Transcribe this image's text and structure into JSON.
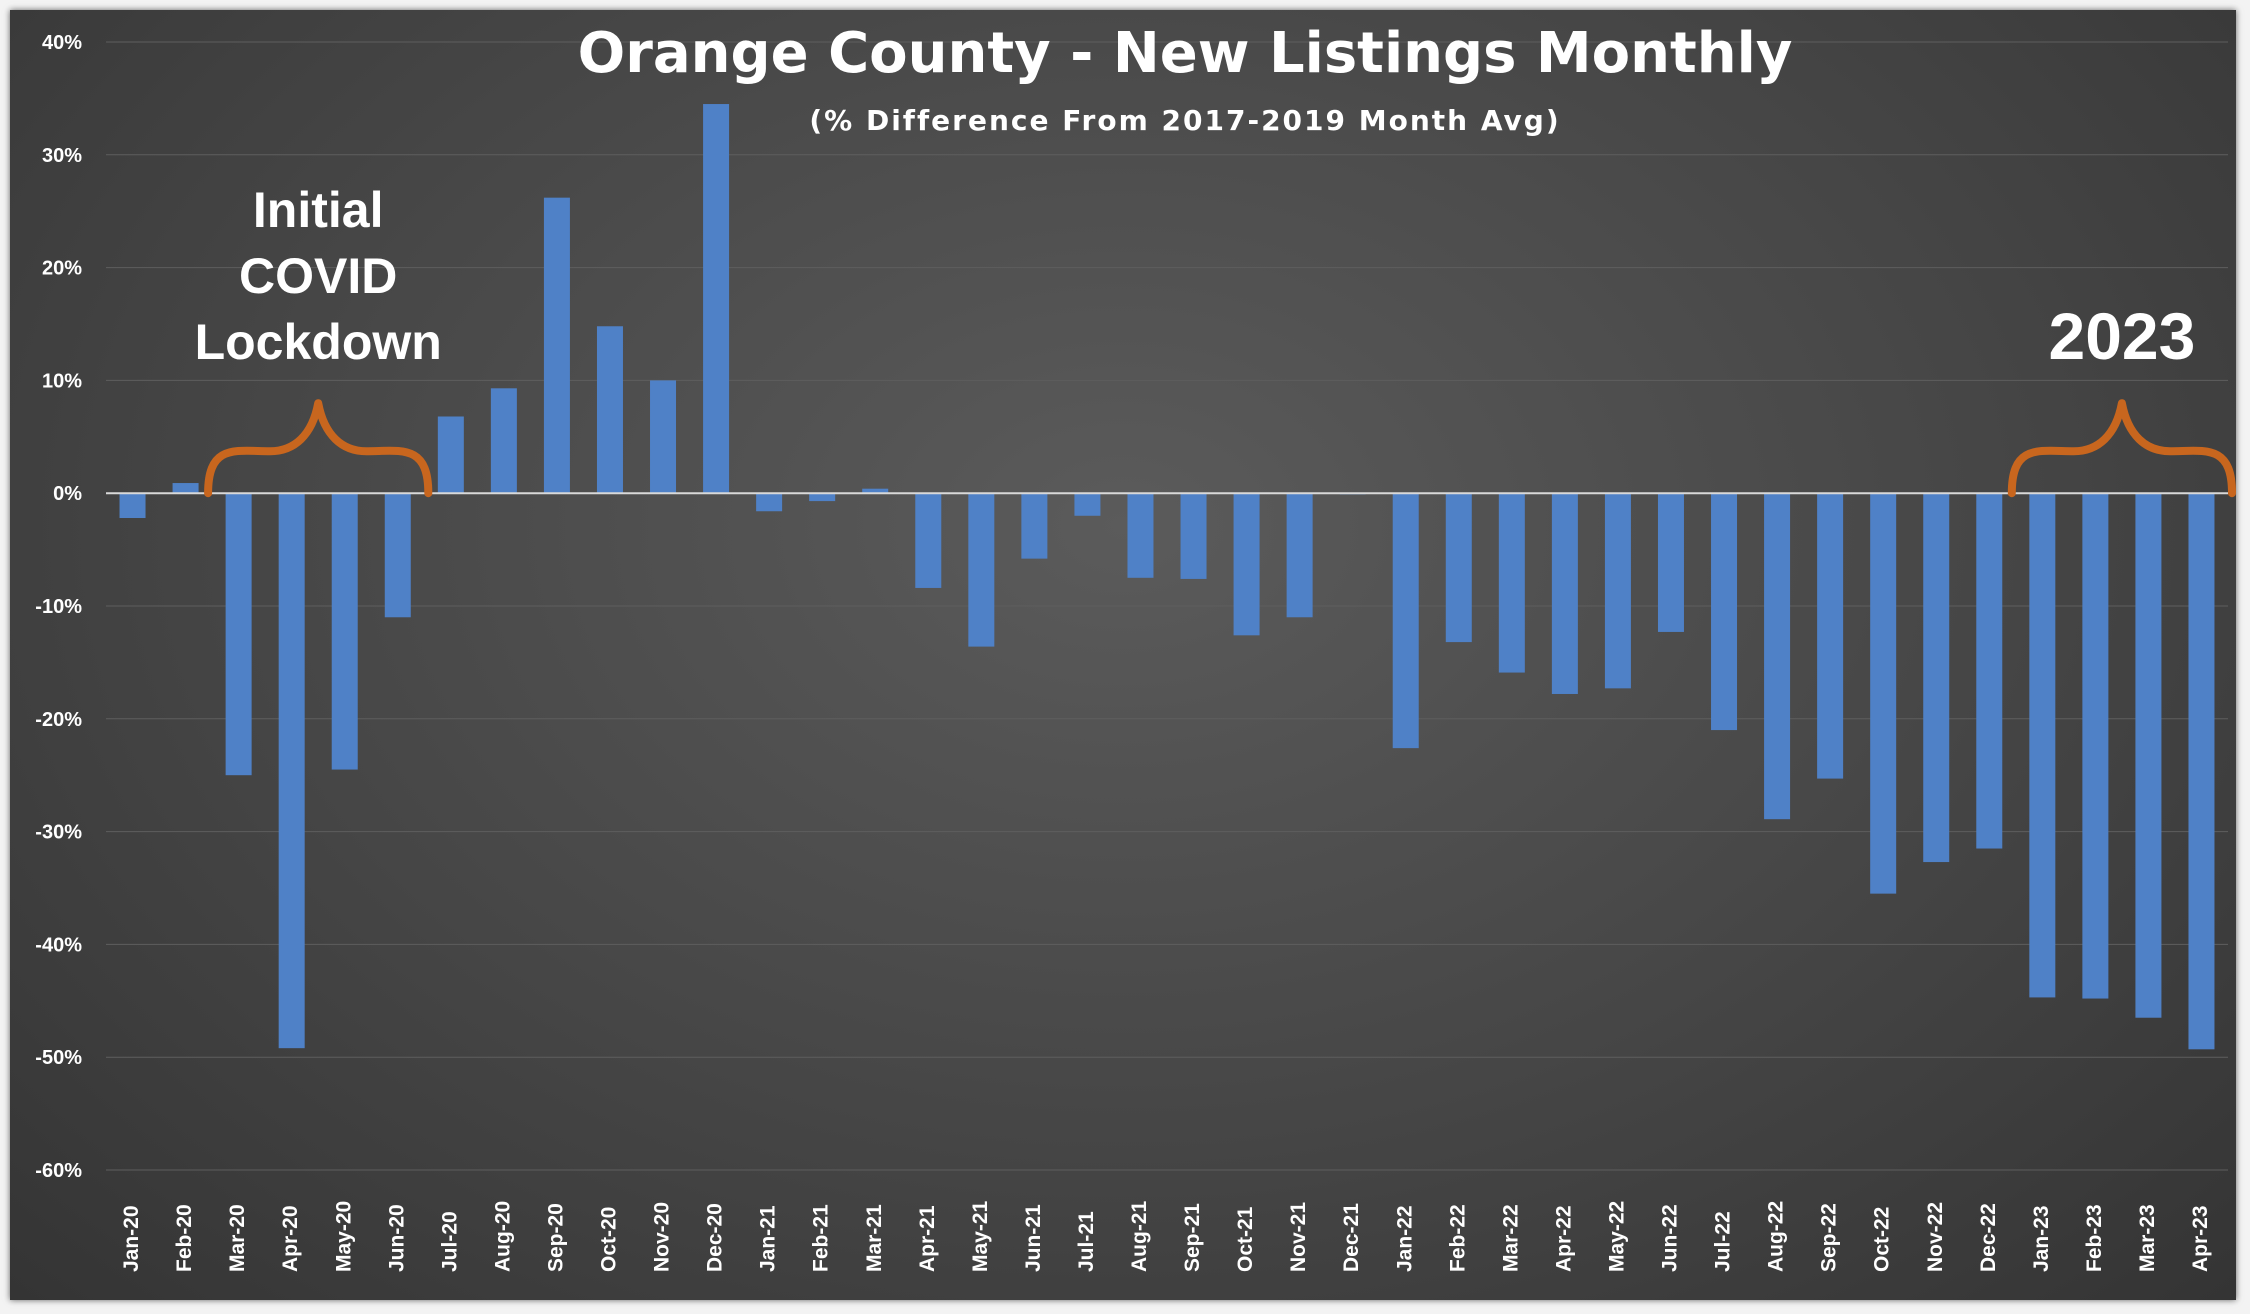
{
  "chart_data": {
    "type": "bar",
    "title": "Orange County - New Listings Monthly",
    "subtitle": "(% Difference From 2017-2019 Month Avg)",
    "xlabel": "",
    "ylabel": "",
    "ylim": [
      -60,
      40
    ],
    "yticks": [
      40,
      30,
      20,
      10,
      0,
      -10,
      -20,
      -30,
      -40,
      -50,
      -60
    ],
    "ytick_labels": [
      "40%",
      "30%",
      "20%",
      "10%",
      "0%",
      "-10%",
      "-20%",
      "-30%",
      "-40%",
      "-50%",
      "-60%"
    ],
    "grid": true,
    "legend": "none",
    "categories": [
      "Jan-20",
      "Feb-20",
      "Mar-20",
      "Apr-20",
      "May-20",
      "Jun-20",
      "Jul-20",
      "Aug-20",
      "Sep-20",
      "Oct-20",
      "Nov-20",
      "Dec-20",
      "Jan-21",
      "Feb-21",
      "Mar-21",
      "Apr-21",
      "May-21",
      "Jun-21",
      "Jul-21",
      "Aug-21",
      "Sep-21",
      "Oct-21",
      "Nov-21",
      "Dec-21",
      "Jan-22",
      "Feb-22",
      "Mar-22",
      "Apr-22",
      "May-22",
      "Jun-22",
      "Jul-22",
      "Aug-22",
      "Sep-22",
      "Oct-22",
      "Nov-22",
      "Dec-22",
      "Jan-23",
      "Feb-23",
      "Mar-23",
      "Apr-23"
    ],
    "values": [
      -2.2,
      0.9,
      -25.0,
      -49.2,
      -24.5,
      -11.0,
      6.8,
      9.3,
      26.2,
      14.8,
      10.0,
      34.5,
      -1.6,
      -0.7,
      0.4,
      -8.4,
      -13.6,
      -5.8,
      -2.0,
      -7.5,
      -7.6,
      -12.6,
      -11.0,
      -0.1,
      -22.6,
      -13.2,
      -15.9,
      -17.8,
      -17.3,
      -12.3,
      -21.0,
      -28.9,
      -25.3,
      -35.5,
      -32.7,
      -31.5,
      -44.7,
      -44.8,
      -46.5,
      -49.3
    ],
    "bar_color": "#4f81c7",
    "annotations": [
      {
        "lines": [
          "Initial",
          "COVID",
          "Lockdown"
        ],
        "brace_from": "Mar-20",
        "brace_to": "Jun-20"
      },
      {
        "lines": [
          "2023"
        ],
        "brace_from": "Jan-23",
        "brace_to": "Apr-23"
      }
    ],
    "annotation_color": "#c8661e"
  }
}
